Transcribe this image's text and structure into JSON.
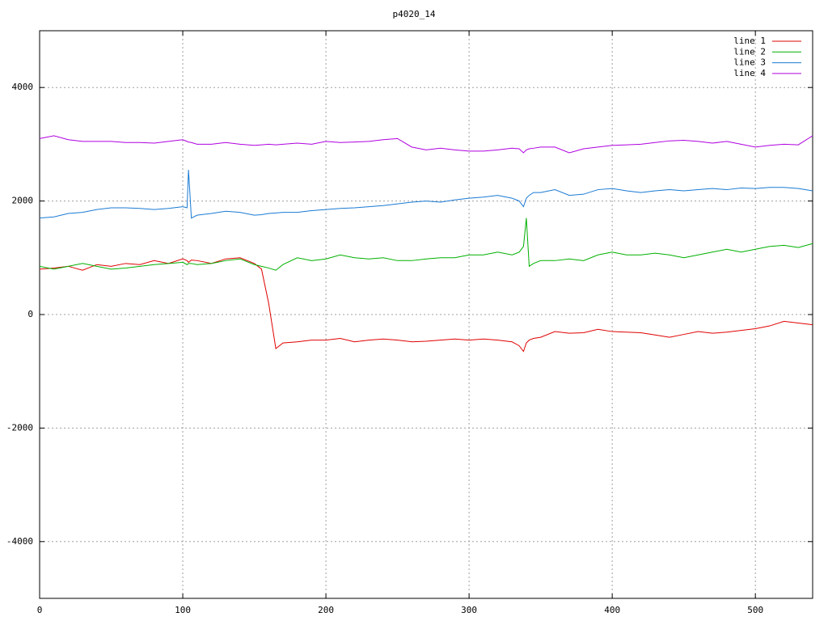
{
  "chart_data": {
    "type": "line",
    "title": "p4020_14",
    "x": [
      0,
      10,
      20,
      30,
      40,
      50,
      60,
      70,
      80,
      90,
      100,
      103,
      104,
      106,
      110,
      120,
      130,
      140,
      150,
      155,
      160,
      165,
      170,
      180,
      190,
      200,
      210,
      220,
      230,
      240,
      250,
      260,
      270,
      280,
      290,
      300,
      310,
      320,
      330,
      335,
      338,
      340,
      342,
      345,
      350,
      360,
      370,
      380,
      390,
      400,
      410,
      420,
      430,
      440,
      450,
      460,
      470,
      480,
      490,
      500,
      510,
      520,
      530,
      540
    ],
    "series": [
      {
        "name": "line 1",
        "color": "#e00000",
        "values": [
          800,
          820,
          850,
          780,
          880,
          850,
          900,
          880,
          950,
          900,
          980,
          950,
          920,
          960,
          950,
          900,
          980,
          1000,
          900,
          800,
          200,
          -600,
          -500,
          -480,
          -450,
          -450,
          -420,
          -480,
          -450,
          -430,
          -450,
          -480,
          -470,
          -450,
          -430,
          -450,
          -430,
          -450,
          -480,
          -550,
          -650,
          -500,
          -450,
          -420,
          -400,
          -300,
          -330,
          -320,
          -260,
          -300,
          -310,
          -320,
          -360,
          -400,
          -350,
          -300,
          -330,
          -310,
          -280,
          -250,
          -200,
          -120,
          -150,
          -180
        ]
      },
      {
        "name": "line 2",
        "color": "#00b000",
        "values": [
          850,
          800,
          850,
          900,
          850,
          800,
          820,
          850,
          880,
          900,
          920,
          880,
          900,
          900,
          880,
          900,
          950,
          980,
          880,
          850,
          820,
          780,
          880,
          1000,
          950,
          980,
          1050,
          1000,
          980,
          1000,
          950,
          950,
          980,
          1000,
          1000,
          1050,
          1050,
          1100,
          1050,
          1100,
          1200,
          1700,
          850,
          900,
          950,
          950,
          980,
          950,
          1050,
          1100,
          1050,
          1050,
          1080,
          1050,
          1000,
          1050,
          1100,
          1150,
          1100,
          1150,
          1200,
          1220,
          1180,
          1250
        ]
      },
      {
        "name": "line 3",
        "color": "#1a7ad4",
        "values": [
          1700,
          1720,
          1780,
          1800,
          1850,
          1880,
          1880,
          1870,
          1850,
          1870,
          1900,
          1880,
          2550,
          1700,
          1750,
          1780,
          1820,
          1800,
          1750,
          1760,
          1780,
          1790,
          1800,
          1800,
          1830,
          1850,
          1870,
          1880,
          1900,
          1920,
          1950,
          1980,
          2000,
          1980,
          2020,
          2050,
          2070,
          2100,
          2050,
          2000,
          1900,
          2050,
          2100,
          2150,
          2150,
          2200,
          2100,
          2120,
          2200,
          2220,
          2180,
          2150,
          2180,
          2200,
          2180,
          2200,
          2220,
          2200,
          2230,
          2220,
          2240,
          2240,
          2220,
          2180
        ]
      },
      {
        "name": "line 4",
        "color": "#b000e0",
        "values": [
          3100,
          3150,
          3080,
          3050,
          3050,
          3050,
          3030,
          3030,
          3020,
          3050,
          3080,
          3050,
          3040,
          3030,
          3000,
          3000,
          3030,
          3000,
          2980,
          2990,
          3000,
          2990,
          3000,
          3020,
          3000,
          3050,
          3030,
          3040,
          3050,
          3080,
          3100,
          2950,
          2900,
          2930,
          2900,
          2880,
          2880,
          2900,
          2930,
          2920,
          2850,
          2900,
          2920,
          2930,
          2950,
          2950,
          2850,
          2920,
          2950,
          2980,
          2990,
          3000,
          3030,
          3060,
          3070,
          3050,
          3020,
          3050,
          3000,
          2950,
          2980,
          3000,
          2990,
          3150
        ]
      }
    ],
    "xlim": [
      0,
      540
    ],
    "ylim": [
      -5000,
      5000
    ],
    "xticks": [
      0,
      100,
      200,
      300,
      400,
      500
    ],
    "yticks": [
      -4000,
      -2000,
      0,
      2000,
      4000
    ],
    "grid": true,
    "legend": "upper right"
  }
}
